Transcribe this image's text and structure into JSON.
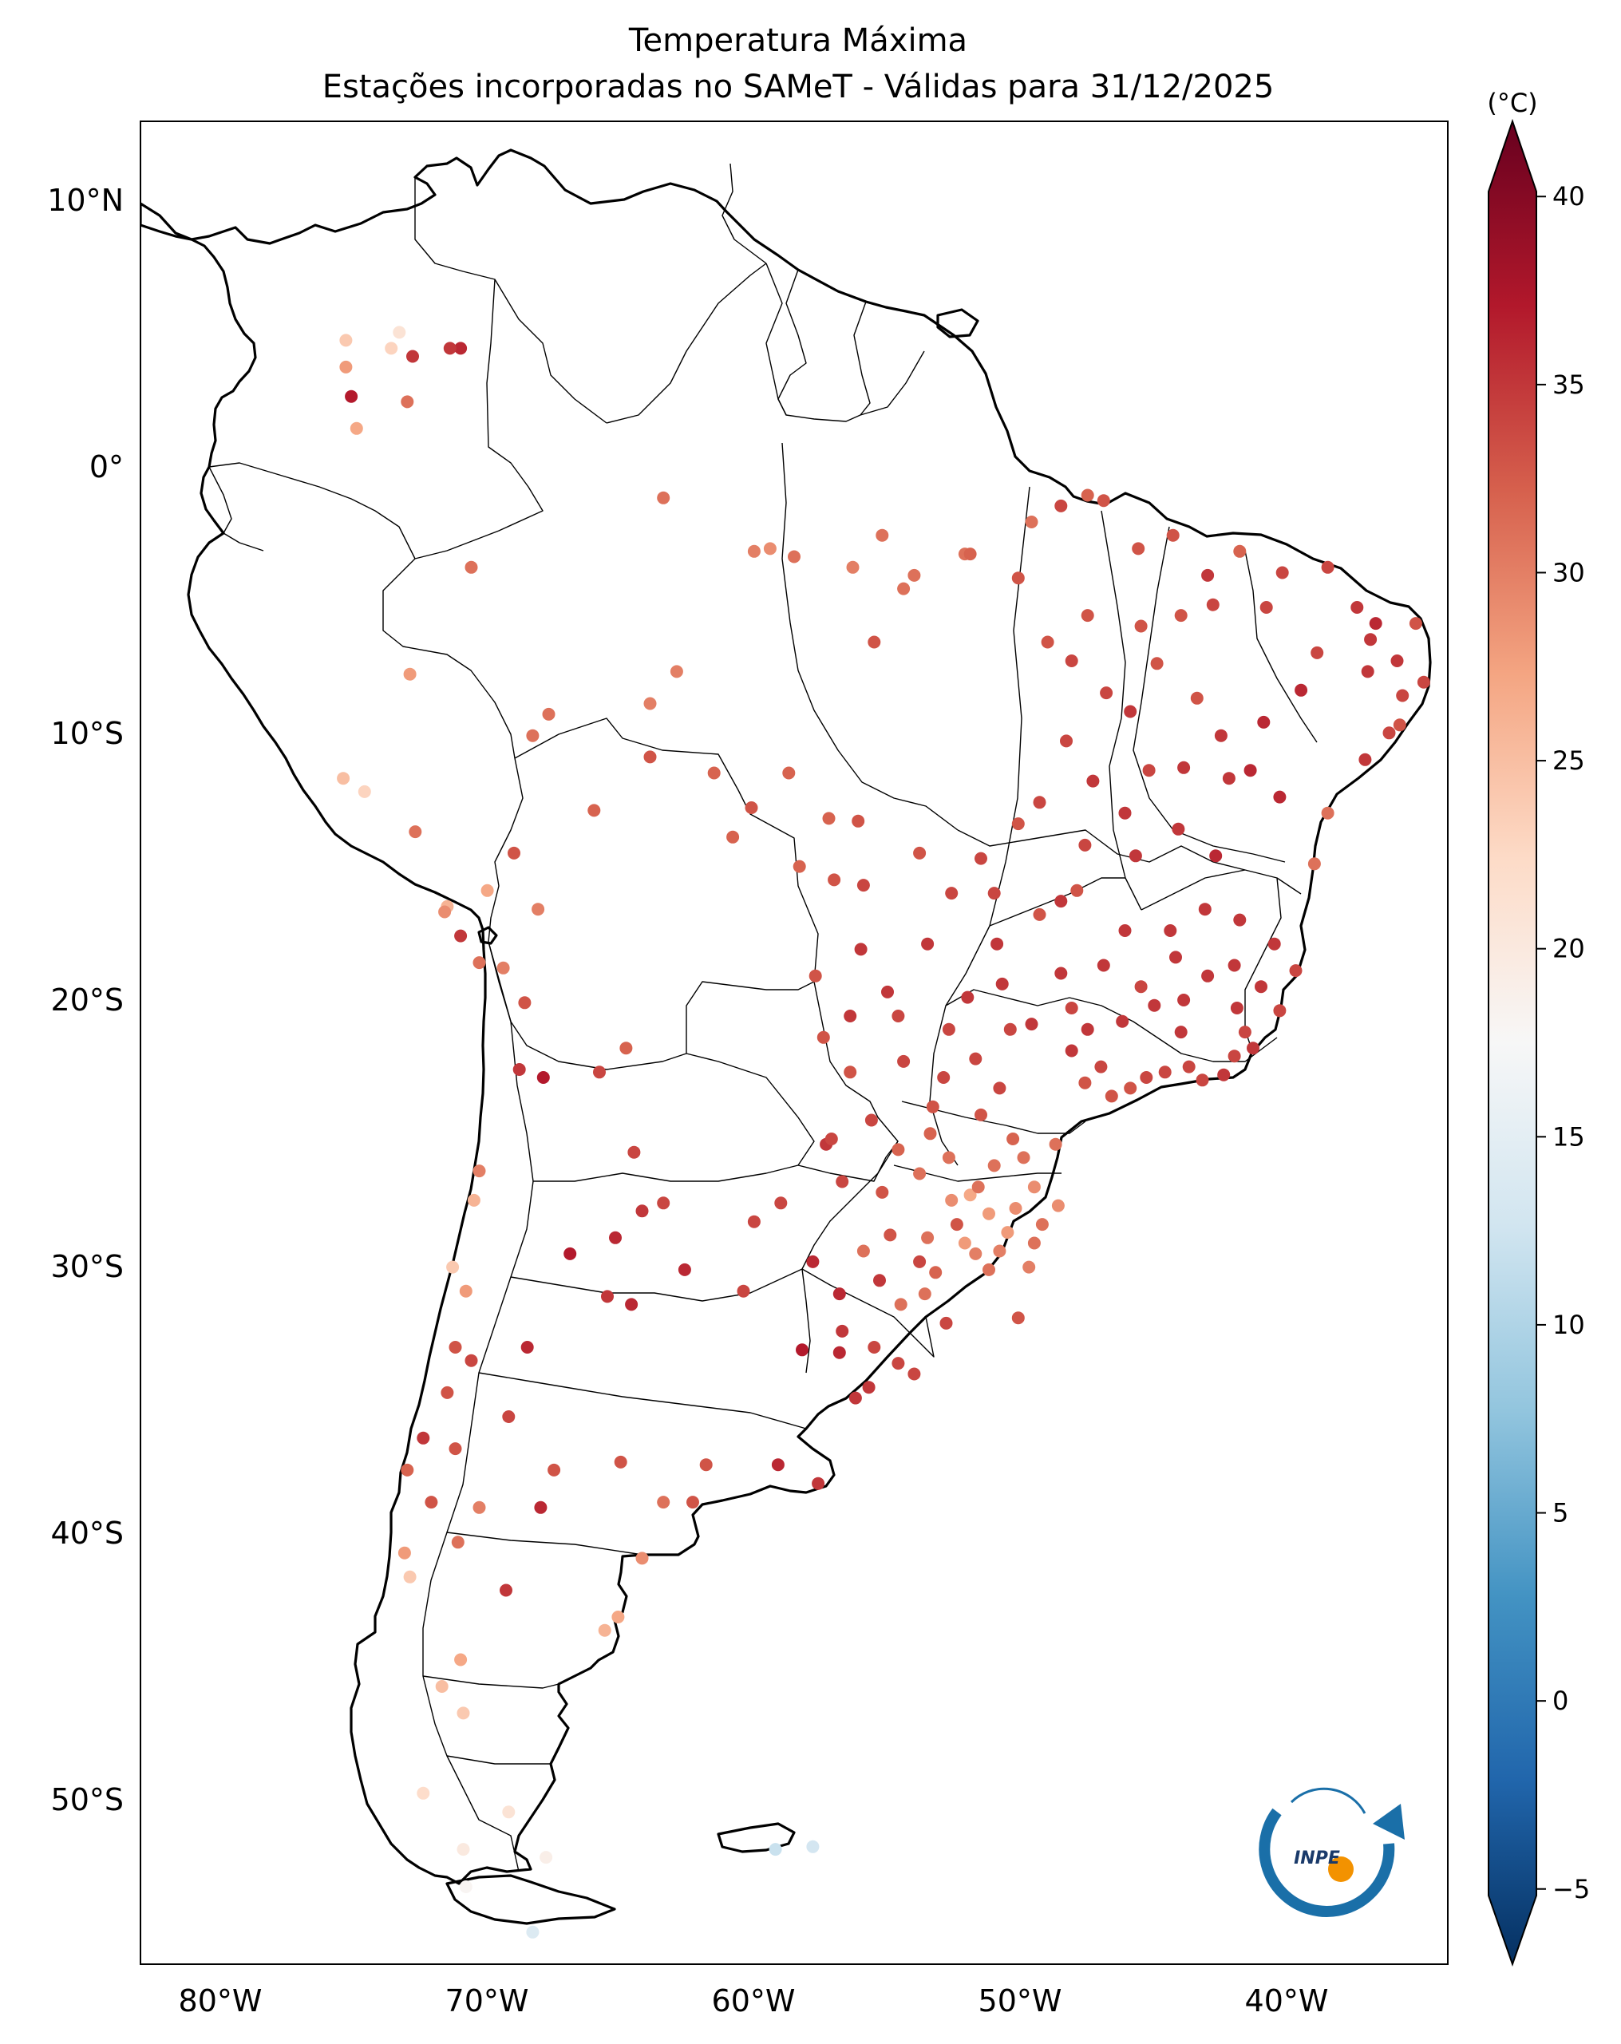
{
  "title": "Temperatura Máxima",
  "subtitle": "Estações incorporadas no SAMeT - Válidas para 31/12/2025",
  "colorbar": {
    "unit_label": "(°C)",
    "min": -7,
    "max": 42,
    "ticks": [
      40,
      35,
      30,
      25,
      20,
      15,
      10,
      5,
      0,
      -5
    ],
    "tick_labels": [
      "40",
      "35",
      "30",
      "25",
      "20",
      "15",
      "10",
      "5",
      "0",
      "−5"
    ],
    "colors": [
      "#053061",
      "#2166ac",
      "#4393c3",
      "#92c5de",
      "#d1e5f0",
      "#f7f7f7",
      "#fddbc7",
      "#f4a582",
      "#d6604d",
      "#b2182b",
      "#67001f"
    ]
  },
  "map": {
    "lon_range": [
      -83,
      -34
    ],
    "lat_range": [
      -56,
      13
    ],
    "lon_labels": [
      "80°W",
      "70°W",
      "60°W",
      "50°W",
      "40°W"
    ],
    "lat_labels": [
      "10°N",
      "0°",
      "10°S",
      "20°S",
      "30°S",
      "40°S",
      "50°S"
    ]
  },
  "logo": {
    "text": "INPE"
  },
  "chart_data": {
    "type": "scatter",
    "title": "Temperatura Máxima",
    "subtitle": "Estações incorporadas no SAMeT - Válidas para 31/12/2025",
    "xlabel": "",
    "ylabel": "",
    "colorbar_label": "(°C)",
    "xlim": [
      -83,
      -34
    ],
    "ylim": [
      -56,
      13
    ],
    "colormap": "RdBu_r",
    "color_range": [
      -7,
      42
    ],
    "points": [
      [
        -75.3,
        4.8,
        24
      ],
      [
        -75.3,
        3.8,
        28
      ],
      [
        -75.1,
        2.7,
        37
      ],
      [
        -74.9,
        1.5,
        27
      ],
      [
        -73.3,
        5.1,
        21
      ],
      [
        -73.6,
        4.5,
        23
      ],
      [
        -72.8,
        4.2,
        35
      ],
      [
        -71.0,
        4.5,
        36
      ],
      [
        -71.4,
        4.5,
        35
      ],
      [
        -73.0,
        2.5,
        31
      ],
      [
        -70.6,
        -3.7,
        31
      ],
      [
        -72.9,
        -7.7,
        28
      ],
      [
        -68.3,
        -10.0,
        31
      ],
      [
        -67.7,
        -9.2,
        31
      ],
      [
        -63.9,
        -8.8,
        30
      ],
      [
        -62.9,
        -7.6,
        30
      ],
      [
        -63.4,
        -1.1,
        31
      ],
      [
        -60.0,
        -3.1,
        30
      ],
      [
        -59.4,
        -3.0,
        29
      ],
      [
        -58.5,
        -3.3,
        31
      ],
      [
        -56.3,
        -3.7,
        30
      ],
      [
        -55.2,
        -2.5,
        31
      ],
      [
        -54.0,
        -4.0,
        31
      ],
      [
        -52.1,
        -3.2,
        31
      ],
      [
        -51.9,
        -3.2,
        32
      ],
      [
        -48.5,
        -1.4,
        34
      ],
      [
        -49.6,
        -2.0,
        31
      ],
      [
        -47.5,
        -1.0,
        32
      ],
      [
        -46.9,
        -1.2,
        33
      ],
      [
        -45.6,
        -3.0,
        33
      ],
      [
        -44.3,
        -2.5,
        33
      ],
      [
        -43.0,
        -4.0,
        35
      ],
      [
        -41.8,
        -3.1,
        32
      ],
      [
        -40.2,
        -3.9,
        34
      ],
      [
        -38.5,
        -3.7,
        34
      ],
      [
        -37.4,
        -5.2,
        35
      ],
      [
        -36.7,
        -5.8,
        36
      ],
      [
        -35.2,
        -5.8,
        33
      ],
      [
        -35.9,
        -7.2,
        35
      ],
      [
        -34.9,
        -8.0,
        34
      ],
      [
        -35.8,
        -9.6,
        33
      ],
      [
        -37.1,
        -10.9,
        35
      ],
      [
        -38.5,
        -12.9,
        31
      ],
      [
        -39.0,
        -14.8,
        31
      ],
      [
        -40.3,
        -12.3,
        36
      ],
      [
        -41.4,
        -11.3,
        36
      ],
      [
        -42.5,
        -10.0,
        35
      ],
      [
        -43.4,
        -8.6,
        33
      ],
      [
        -44.9,
        -7.3,
        33
      ],
      [
        -42.8,
        -5.1,
        34
      ],
      [
        -47.5,
        -5.5,
        33
      ],
      [
        -48.3,
        -10.2,
        34
      ],
      [
        -49.3,
        -12.5,
        34
      ],
      [
        -47.9,
        -15.8,
        33
      ],
      [
        -49.3,
        -16.7,
        33
      ],
      [
        -50.1,
        -13.3,
        33
      ],
      [
        -51.0,
        -15.9,
        34
      ],
      [
        -52.6,
        -15.9,
        34
      ],
      [
        -55.9,
        -15.6,
        34
      ],
      [
        -56.1,
        -13.2,
        33
      ],
      [
        -57.2,
        -13.1,
        32
      ],
      [
        -58.7,
        -11.4,
        32
      ],
      [
        -60.1,
        -12.7,
        33
      ],
      [
        -61.5,
        -11.4,
        32
      ],
      [
        -63.9,
        -10.8,
        33
      ],
      [
        -66.0,
        -12.8,
        32
      ],
      [
        -68.1,
        -16.5,
        30
      ],
      [
        -69.0,
        -14.4,
        33
      ],
      [
        -70.0,
        -15.8,
        27
      ],
      [
        -71.5,
        -16.4,
        26
      ],
      [
        -75.4,
        -11.6,
        25
      ],
      [
        -74.6,
        -12.1,
        23
      ],
      [
        -72.7,
        -13.6,
        31
      ],
      [
        -71.6,
        -16.6,
        29
      ],
      [
        -71.0,
        -17.5,
        35
      ],
      [
        -70.3,
        -18.5,
        31
      ],
      [
        -69.4,
        -18.7,
        30
      ],
      [
        -68.6,
        -20.0,
        33
      ],
      [
        -68.8,
        -22.5,
        35
      ],
      [
        -67.9,
        -22.8,
        37
      ],
      [
        -65.8,
        -22.6,
        34
      ],
      [
        -64.8,
        -21.7,
        32
      ],
      [
        -64.5,
        -25.6,
        34
      ],
      [
        -63.4,
        -27.5,
        34
      ],
      [
        -64.2,
        -27.8,
        35
      ],
      [
        -65.2,
        -28.8,
        36
      ],
      [
        -66.9,
        -29.4,
        37
      ],
      [
        -65.5,
        -31.0,
        35
      ],
      [
        -64.6,
        -31.3,
        36
      ],
      [
        -62.6,
        -30.0,
        36
      ],
      [
        -60.4,
        -30.8,
        34
      ],
      [
        -60.0,
        -28.2,
        34
      ],
      [
        -59.0,
        -27.5,
        34
      ],
      [
        -57.3,
        -25.3,
        35
      ],
      [
        -58.2,
        -33.0,
        37
      ],
      [
        -56.2,
        -34.8,
        35
      ],
      [
        -54.0,
        -33.9,
        34
      ],
      [
        -56.8,
        -30.9,
        36
      ],
      [
        -55.3,
        -30.4,
        35
      ],
      [
        -53.8,
        -29.7,
        34
      ],
      [
        -52.4,
        -28.3,
        33
      ],
      [
        -51.2,
        -30.0,
        31
      ],
      [
        -49.7,
        -29.9,
        30
      ],
      [
        -50.1,
        -31.8,
        33
      ],
      [
        -52.8,
        -32.0,
        34
      ],
      [
        -51.9,
        -27.2,
        27
      ],
      [
        -49.5,
        -26.9,
        29
      ],
      [
        -48.6,
        -27.6,
        29
      ],
      [
        -50.3,
        -25.1,
        32
      ],
      [
        -51.5,
        -24.2,
        33
      ],
      [
        -53.4,
        -24.9,
        32
      ],
      [
        -54.6,
        -25.5,
        32
      ],
      [
        -52.9,
        -22.8,
        34
      ],
      [
        -54.4,
        -22.2,
        34
      ],
      [
        -56.4,
        -22.6,
        33
      ],
      [
        -57.4,
        -21.3,
        33
      ],
      [
        -57.7,
        -19.0,
        33
      ],
      [
        -54.6,
        -20.5,
        34
      ],
      [
        -52.7,
        -21.0,
        34
      ],
      [
        -50.4,
        -21.0,
        34
      ],
      [
        -48.1,
        -20.2,
        34
      ],
      [
        -47.0,
        -22.4,
        34
      ],
      [
        -46.6,
        -23.5,
        33
      ],
      [
        -45.9,
        -23.2,
        33
      ],
      [
        -44.6,
        -22.6,
        34
      ],
      [
        -43.2,
        -22.9,
        34
      ],
      [
        -42.0,
        -22.0,
        34
      ],
      [
        -41.3,
        -21.7,
        35
      ],
      [
        -40.3,
        -20.3,
        34
      ],
      [
        -41.9,
        -20.2,
        35
      ],
      [
        -43.9,
        -19.9,
        35
      ],
      [
        -45.5,
        -19.4,
        34
      ],
      [
        -46.9,
        -18.6,
        35
      ],
      [
        -44.4,
        -17.3,
        35
      ],
      [
        -43.1,
        -16.5,
        35
      ],
      [
        -41.8,
        -16.9,
        35
      ],
      [
        -40.5,
        -17.8,
        35
      ],
      [
        -39.7,
        -18.8,
        34
      ],
      [
        -42.7,
        -14.5,
        36
      ],
      [
        -44.1,
        -13.5,
        35
      ],
      [
        -45.7,
        -14.5,
        35
      ],
      [
        -47.6,
        -14.1,
        34
      ],
      [
        -70.3,
        -26.3,
        30
      ],
      [
        -70.5,
        -27.4,
        26
      ],
      [
        -71.3,
        -29.9,
        24
      ],
      [
        -70.8,
        -30.8,
        28
      ],
      [
        -71.2,
        -32.9,
        33
      ],
      [
        -70.6,
        -33.4,
        34
      ],
      [
        -71.5,
        -34.6,
        33
      ],
      [
        -71.2,
        -36.7,
        33
      ],
      [
        -72.4,
        -36.3,
        35
      ],
      [
        -73.0,
        -37.5,
        32
      ],
      [
        -72.1,
        -38.7,
        33
      ],
      [
        -73.1,
        -40.6,
        28
      ],
      [
        -72.9,
        -41.5,
        24
      ],
      [
        -70.3,
        -38.9,
        30
      ],
      [
        -71.1,
        -40.2,
        31
      ],
      [
        -68.0,
        -38.9,
        36
      ],
      [
        -69.2,
        -35.5,
        34
      ],
      [
        -68.5,
        -32.9,
        36
      ],
      [
        -67.5,
        -37.5,
        33
      ],
      [
        -65.0,
        -37.2,
        33
      ],
      [
        -63.4,
        -38.7,
        31
      ],
      [
        -61.8,
        -37.3,
        33
      ],
      [
        -59.1,
        -37.3,
        36
      ],
      [
        -57.6,
        -38.0,
        35
      ],
      [
        -62.3,
        -38.7,
        33
      ],
      [
        -64.2,
        -40.8,
        29
      ],
      [
        -65.1,
        -43.0,
        27
      ],
      [
        -65.6,
        -43.5,
        26
      ],
      [
        -69.3,
        -42.0,
        35
      ],
      [
        -71.0,
        -44.6,
        27
      ],
      [
        -71.7,
        -45.6,
        25
      ],
      [
        -70.9,
        -46.6,
        24
      ],
      [
        -72.4,
        -49.6,
        22
      ],
      [
        -70.9,
        -51.7,
        20
      ],
      [
        -70.8,
        -53.1,
        18
      ],
      [
        -68.3,
        -54.8,
        14
      ],
      [
        -67.8,
        -52.0,
        19
      ],
      [
        -69.2,
        -50.3,
        21
      ],
      [
        -59.2,
        -51.7,
        12
      ],
      [
        -57.8,
        -51.6,
        13
      ],
      [
        -54.4,
        -4.5,
        31
      ],
      [
        -55.5,
        -6.5,
        33
      ],
      [
        -50.1,
        -4.1,
        33
      ],
      [
        -49.0,
        -6.5,
        33
      ],
      [
        -48.1,
        -7.2,
        34
      ],
      [
        -46.8,
        -8.4,
        34
      ],
      [
        -45.9,
        -9.1,
        35
      ],
      [
        -45.2,
        -11.3,
        34
      ],
      [
        -46.1,
        -12.9,
        35
      ],
      [
        -47.3,
        -11.7,
        35
      ],
      [
        -46.1,
        -17.3,
        35
      ],
      [
        -48.5,
        -18.9,
        35
      ],
      [
        -50.9,
        -17.8,
        35
      ],
      [
        -53.5,
        -17.8,
        35
      ],
      [
        -56.0,
        -18.0,
        35
      ],
      [
        -55.0,
        -19.6,
        35
      ],
      [
        -56.4,
        -20.5,
        35
      ],
      [
        -52.0,
        -19.8,
        35
      ],
      [
        -50.7,
        -19.3,
        35
      ],
      [
        -49.6,
        -20.8,
        35
      ],
      [
        -48.1,
        -21.8,
        35
      ],
      [
        -47.5,
        -21.0,
        35
      ],
      [
        -46.2,
        -20.7,
        35
      ],
      [
        -45.0,
        -20.1,
        35
      ],
      [
        -44.0,
        -21.1,
        35
      ],
      [
        -43.0,
        -19.0,
        35
      ],
      [
        -42.0,
        -18.6,
        35
      ],
      [
        -41.0,
        -19.4,
        35
      ],
      [
        -50.8,
        -23.2,
        34
      ],
      [
        -51.7,
        -22.1,
        34
      ],
      [
        -53.3,
        -23.9,
        33
      ],
      [
        -55.6,
        -24.4,
        34
      ],
      [
        -52.7,
        -25.8,
        31
      ],
      [
        -51.0,
        -26.1,
        31
      ],
      [
        -49.9,
        -25.8,
        31
      ],
      [
        -48.7,
        -25.3,
        31
      ],
      [
        -53.8,
        -26.4,
        31
      ],
      [
        -52.6,
        -27.4,
        29
      ],
      [
        -51.2,
        -27.9,
        28
      ],
      [
        -50.5,
        -28.6,
        28
      ],
      [
        -49.2,
        -28.3,
        31
      ],
      [
        -53.5,
        -28.8,
        31
      ],
      [
        -54.9,
        -28.7,
        33
      ],
      [
        -55.9,
        -29.3,
        31
      ],
      [
        -57.8,
        -29.7,
        36
      ],
      [
        -56.7,
        -32.3,
        35
      ],
      [
        -55.5,
        -32.9,
        34
      ],
      [
        -54.5,
        -31.3,
        31
      ],
      [
        -53.2,
        -30.1,
        32
      ],
      [
        -51.7,
        -29.4,
        30
      ],
      [
        -50.8,
        -29.3,
        30
      ],
      [
        -49.5,
        -29.0,
        31
      ],
      [
        -47.6,
        -23.0,
        33
      ],
      [
        -45.3,
        -22.8,
        34
      ],
      [
        -43.7,
        -22.4,
        34
      ],
      [
        -42.4,
        -22.7,
        35
      ],
      [
        -41.6,
        -21.1,
        34
      ],
      [
        -44.2,
        -18.3,
        35
      ],
      [
        -48.5,
        -16.2,
        35
      ],
      [
        -51.5,
        -14.6,
        34
      ],
      [
        -53.8,
        -14.4,
        33
      ],
      [
        -57.0,
        -15.4,
        33
      ],
      [
        -58.3,
        -14.9,
        32
      ],
      [
        -60.8,
        -13.8,
        32
      ],
      [
        -38.9,
        -6.9,
        34
      ],
      [
        -37.0,
        -7.6,
        35
      ],
      [
        -35.7,
        -8.5,
        34
      ],
      [
        -39.5,
        -8.3,
        36
      ],
      [
        -40.9,
        -9.5,
        36
      ],
      [
        -42.2,
        -11.6,
        35
      ],
      [
        -43.9,
        -11.2,
        35
      ],
      [
        -45.5,
        -5.9,
        33
      ],
      [
        -44.0,
        -5.5,
        33
      ],
      [
        -40.8,
        -5.2,
        34
      ],
      [
        -36.9,
        -6.4,
        35
      ],
      [
        -36.2,
        -9.9,
        34
      ],
      [
        -56.7,
        -26.7,
        34
      ],
      [
        -55.2,
        -27.1,
        33
      ],
      [
        -57.1,
        -25.1,
        34
      ],
      [
        -54.6,
        -33.5,
        34
      ],
      [
        -55.7,
        -34.4,
        35
      ],
      [
        -56.8,
        -33.1,
        36
      ],
      [
        -53.6,
        -30.9,
        31
      ],
      [
        -52.1,
        -29.0,
        28
      ],
      [
        -51.6,
        -26.9,
        31
      ],
      [
        -50.2,
        -27.7,
        29
      ]
    ]
  }
}
